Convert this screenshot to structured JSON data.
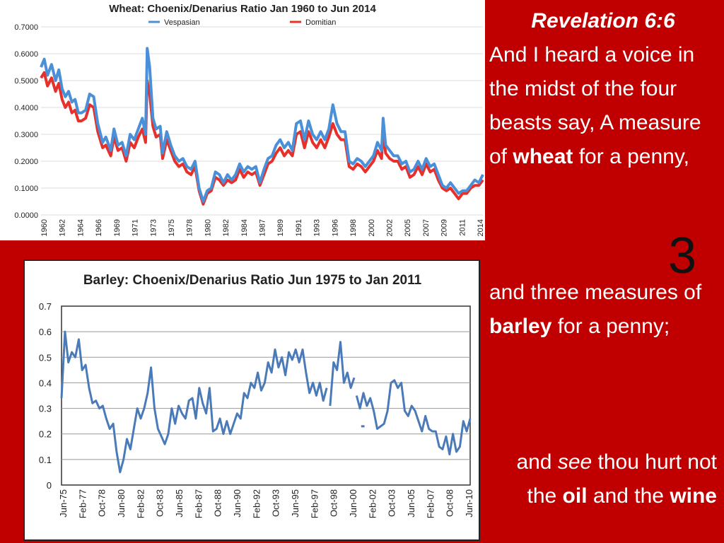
{
  "slide": {
    "title": "Revelation 6:6",
    "verse1": {
      "pre": "And I heard a voice in the midst of the four beasts say, A measure of ",
      "bold": "wheat",
      "post": " for a penny,"
    },
    "number": "3",
    "verse2": {
      "pre": " and three measures of ",
      "bold": "barley",
      "post": " for a penny;"
    },
    "verse3": {
      "pre1": "and ",
      "italic": "see",
      "pre2": " thou hurt not the ",
      "bold1": "oil",
      "mid": " and the ",
      "bold2": "wine"
    }
  },
  "chart_data": [
    {
      "type": "line",
      "title": "Wheat: Choenix/Denarius Ratio Jan 1960 to Jun 2014",
      "xlabel": "",
      "ylabel": "",
      "xlim": [
        1960,
        2014.5
      ],
      "ylim": [
        0,
        0.7
      ],
      "yticks": [
        "0.0000",
        "0.1000",
        "0.2000",
        "0.3000",
        "0.4000",
        "0.5000",
        "0.6000",
        "0.7000"
      ],
      "xticks": [
        "1960",
        "1962",
        "1964",
        "1966",
        "1969",
        "1971",
        "1973",
        "1975",
        "1978",
        "1980",
        "1982",
        "1984",
        "1987",
        "1989",
        "1991",
        "1993",
        "1996",
        "1998",
        "2000",
        "2002",
        "2005",
        "2007",
        "2009",
        "2011",
        "2014"
      ],
      "grid": true,
      "legend": "top-center",
      "series": [
        {
          "name": "Vespasian",
          "color": "#4a90d9",
          "x": [
            1960,
            1960.4,
            1960.8,
            1961.3,
            1961.8,
            1962.2,
            1962.6,
            1963,
            1963.4,
            1963.8,
            1964.2,
            1964.6,
            1965,
            1965.5,
            1966,
            1966.5,
            1967,
            1967.6,
            1968,
            1968.6,
            1969,
            1969.5,
            1970,
            1970.5,
            1971,
            1971.5,
            1972,
            1972.5,
            1972.9,
            1973.1,
            1973.4,
            1973.8,
            1974.2,
            1974.7,
            1975,
            1975.5,
            1976,
            1976.5,
            1977,
            1977.5,
            1978,
            1978.5,
            1979,
            1979.5,
            1980,
            1980.5,
            1981,
            1981.5,
            1982,
            1982.5,
            1983,
            1983.5,
            1984,
            1984.5,
            1985,
            1985.5,
            1986,
            1986.5,
            1987,
            1987.5,
            1988,
            1988.5,
            1989,
            1989.5,
            1990,
            1990.5,
            1991,
            1991.5,
            1992,
            1992.5,
            1993,
            1993.5,
            1994,
            1994.5,
            1995,
            1995.5,
            1996,
            1996.5,
            1997,
            1997.5,
            1998,
            1998.5,
            1999,
            1999.5,
            2000,
            2000.5,
            2001,
            2001.5,
            2002,
            2002.2,
            2002.5,
            2003,
            2003.5,
            2004,
            2004.5,
            2005,
            2005.5,
            2006,
            2006.5,
            2007,
            2007.5,
            2008,
            2008.5,
            2009,
            2009.5,
            2010,
            2010.5,
            2011,
            2011.5,
            2012,
            2012.5,
            2013,
            2013.5,
            2014,
            2014.5
          ],
          "y": [
            0.55,
            0.58,
            0.52,
            0.56,
            0.5,
            0.54,
            0.47,
            0.44,
            0.46,
            0.42,
            0.43,
            0.38,
            0.38,
            0.39,
            0.45,
            0.44,
            0.34,
            0.27,
            0.29,
            0.24,
            0.32,
            0.26,
            0.27,
            0.22,
            0.3,
            0.28,
            0.32,
            0.36,
            0.3,
            0.62,
            0.55,
            0.36,
            0.32,
            0.33,
            0.23,
            0.31,
            0.26,
            0.22,
            0.2,
            0.21,
            0.18,
            0.17,
            0.2,
            0.1,
            0.05,
            0.09,
            0.1,
            0.16,
            0.15,
            0.12,
            0.15,
            0.13,
            0.15,
            0.19,
            0.16,
            0.18,
            0.17,
            0.18,
            0.12,
            0.17,
            0.21,
            0.22,
            0.26,
            0.28,
            0.25,
            0.27,
            0.24,
            0.34,
            0.35,
            0.28,
            0.35,
            0.3,
            0.28,
            0.31,
            0.28,
            0.32,
            0.41,
            0.34,
            0.31,
            0.31,
            0.2,
            0.19,
            0.21,
            0.2,
            0.18,
            0.2,
            0.22,
            0.27,
            0.24,
            0.36,
            0.26,
            0.24,
            0.22,
            0.22,
            0.19,
            0.2,
            0.16,
            0.17,
            0.2,
            0.17,
            0.21,
            0.18,
            0.19,
            0.15,
            0.11,
            0.1,
            0.12,
            0.1,
            0.08,
            0.09,
            0.09,
            0.11,
            0.13,
            0.12,
            0.15
          ]
        },
        {
          "name": "Domitian",
          "color": "#e8302a",
          "x": [
            1960,
            1960.4,
            1960.8,
            1961.3,
            1961.8,
            1962.2,
            1962.6,
            1963,
            1963.4,
            1963.8,
            1964.2,
            1964.6,
            1965,
            1965.5,
            1966,
            1966.5,
            1967,
            1967.6,
            1968,
            1968.6,
            1969,
            1969.5,
            1970,
            1970.5,
            1971,
            1971.5,
            1972,
            1972.5,
            1972.9,
            1973.1,
            1973.4,
            1973.8,
            1974.2,
            1974.7,
            1975,
            1975.5,
            1976,
            1976.5,
            1977,
            1977.5,
            1978,
            1978.5,
            1979,
            1979.5,
            1980,
            1980.5,
            1981,
            1981.5,
            1982,
            1982.5,
            1983,
            1983.5,
            1984,
            1984.5,
            1985,
            1985.5,
            1986,
            1986.5,
            1987,
            1987.5,
            1988,
            1988.5,
            1989,
            1989.5,
            1990,
            1990.5,
            1991,
            1991.5,
            1992,
            1992.5,
            1993,
            1993.5,
            1994,
            1994.5,
            1995,
            1995.5,
            1996,
            1996.5,
            1997,
            1997.5,
            1998,
            1998.5,
            1999,
            1999.5,
            2000,
            2000.5,
            2001,
            2001.5,
            2002,
            2002.2,
            2002.5,
            2003,
            2003.5,
            2004,
            2004.5,
            2005,
            2005.5,
            2006,
            2006.5,
            2007,
            2007.5,
            2008,
            2008.5,
            2009,
            2009.5,
            2010,
            2010.5,
            2011,
            2011.5,
            2012,
            2012.5,
            2013,
            2013.5,
            2014,
            2014.5
          ],
          "y": [
            0.51,
            0.53,
            0.48,
            0.51,
            0.46,
            0.49,
            0.43,
            0.4,
            0.42,
            0.38,
            0.39,
            0.35,
            0.35,
            0.36,
            0.41,
            0.4,
            0.31,
            0.25,
            0.26,
            0.22,
            0.29,
            0.24,
            0.25,
            0.2,
            0.27,
            0.25,
            0.29,
            0.32,
            0.27,
            0.5,
            0.45,
            0.33,
            0.29,
            0.3,
            0.21,
            0.28,
            0.24,
            0.2,
            0.18,
            0.19,
            0.16,
            0.15,
            0.18,
            0.09,
            0.04,
            0.08,
            0.09,
            0.14,
            0.13,
            0.11,
            0.13,
            0.12,
            0.13,
            0.17,
            0.14,
            0.16,
            0.15,
            0.16,
            0.11,
            0.15,
            0.19,
            0.2,
            0.23,
            0.25,
            0.22,
            0.24,
            0.22,
            0.3,
            0.31,
            0.25,
            0.31,
            0.27,
            0.25,
            0.28,
            0.25,
            0.29,
            0.34,
            0.3,
            0.28,
            0.28,
            0.18,
            0.17,
            0.19,
            0.18,
            0.16,
            0.18,
            0.2,
            0.24,
            0.21,
            0.31,
            0.23,
            0.21,
            0.2,
            0.2,
            0.17,
            0.18,
            0.14,
            0.15,
            0.18,
            0.15,
            0.19,
            0.16,
            0.17,
            0.13,
            0.1,
            0.09,
            0.1,
            0.08,
            0.06,
            0.08,
            0.08,
            0.1,
            0.11,
            0.11,
            0.13
          ]
        }
      ]
    },
    {
      "type": "line",
      "title": "Barley: Choenix/Denarius Ratio Jun 1975 to Jan 2011",
      "xlabel": "",
      "ylabel": "",
      "xlim": [
        1975.4,
        2011.0
      ],
      "ylim": [
        0,
        0.7
      ],
      "yticks": [
        "0",
        "0.1",
        "0.2",
        "0.3",
        "0.4",
        "0.5",
        "0.6",
        "0.7"
      ],
      "xticks": [
        "Jun-75",
        "Feb-77",
        "Oct-78",
        "Jun-80",
        "Feb-82",
        "Oct-83",
        "Jun-85",
        "Feb-87",
        "Oct-88",
        "Jun-90",
        "Feb-92",
        "Oct-93",
        "Jun-95",
        "Feb-97",
        "Oct-98",
        "Jun-00",
        "Feb-02",
        "Oct-03",
        "Jun-05",
        "Feb-07",
        "Oct-08",
        "Jun-10"
      ],
      "grid": true,
      "legend": "none",
      "series": [
        {
          "name": "",
          "color": "#4a7ab8",
          "segments": [
            {
              "x": [
                1975.4,
                1975.7,
                1976.0,
                1976.3,
                1976.6,
                1976.9,
                1977.2,
                1977.5,
                1977.8,
                1978.1,
                1978.4,
                1978.7,
                1979.0,
                1979.3,
                1979.6,
                1979.9,
                1980.2,
                1980.5,
                1980.8,
                1981.1,
                1981.4,
                1981.7,
                1982.0,
                1982.3,
                1982.6,
                1982.9,
                1983.2,
                1983.5,
                1983.8,
                1984.1,
                1984.4,
                1984.7,
                1985.0,
                1985.3,
                1985.6,
                1985.9,
                1986.2,
                1986.5,
                1986.8,
                1987.1,
                1987.4,
                1987.7,
                1988.0,
                1988.3,
                1988.6,
                1988.9,
                1989.2,
                1989.5,
                1989.8,
                1990.1,
                1990.4,
                1990.7,
                1991.0,
                1991.3,
                1991.6,
                1991.9,
                1992.2,
                1992.5,
                1992.8,
                1993.1,
                1993.4,
                1993.7,
                1994.0,
                1994.3,
                1994.6,
                1994.9,
                1995.2,
                1995.5,
                1995.8,
                1996.1,
                1996.4,
                1996.7,
                1997.0,
                1997.3,
                1997.6,
                1997.9,
                1998.2,
                1998.5
              ],
              "y": [
                0.34,
                0.6,
                0.48,
                0.52,
                0.5,
                0.57,
                0.45,
                0.47,
                0.38,
                0.32,
                0.33,
                0.3,
                0.31,
                0.26,
                0.22,
                0.24,
                0.13,
                0.05,
                0.1,
                0.18,
                0.14,
                0.22,
                0.3,
                0.26,
                0.3,
                0.36,
                0.46,
                0.3,
                0.22,
                0.19,
                0.16,
                0.2,
                0.3,
                0.24,
                0.31,
                0.28,
                0.26,
                0.33,
                0.34,
                0.26,
                0.38,
                0.32,
                0.28,
                0.38,
                0.21,
                0.22,
                0.26,
                0.2,
                0.25,
                0.2,
                0.24,
                0.28,
                0.26,
                0.36,
                0.34,
                0.4,
                0.38,
                0.44,
                0.37,
                0.4,
                0.48,
                0.44,
                0.53,
                0.46,
                0.5,
                0.43,
                0.52,
                0.49,
                0.53,
                0.48,
                0.53,
                0.44,
                0.36,
                0.4,
                0.35,
                0.4,
                0.33,
                0.38
              ]
            },
            {
              "x": [
                1998.8,
                1999.1,
                1999.4,
                1999.7,
                2000.0,
                2000.3,
                2000.6,
                2000.9
              ],
              "y": [
                0.31,
                0.48,
                0.45,
                0.56,
                0.4,
                0.44,
                0.38,
                0.42
              ]
            },
            {
              "x": [
                2001.1,
                2001.4,
                2001.7,
                2002.0,
                2002.3,
                2002.6,
                2002.9,
                2003.2,
                2003.5,
                2003.8,
                2004.1,
                2004.4,
                2004.7,
                2005.0,
                2005.3,
                2005.6,
                2005.9,
                2006.2,
                2006.5,
                2006.8,
                2007.1,
                2007.4,
                2007.7,
                2008.0,
                2008.3,
                2008.6,
                2008.9,
                2009.2,
                2009.5,
                2009.8,
                2010.1,
                2010.4,
                2010.7,
                2011.0
              ],
              "y": [
                0.35,
                0.3,
                0.36,
                0.31,
                0.34,
                0.29,
                0.22,
                0.23,
                0.24,
                0.29,
                0.4,
                0.41,
                0.38,
                0.4,
                0.29,
                0.27,
                0.31,
                0.29,
                0.25,
                0.21,
                0.27,
                0.22,
                0.21,
                0.21,
                0.15,
                0.14,
                0.19,
                0.12,
                0.2,
                0.13,
                0.15,
                0.25,
                0.21,
                0.26
              ]
            },
            {
              "x": [
                2001.5,
                2001.8
              ],
              "y": [
                0.23,
                0.23
              ]
            }
          ]
        }
      ]
    }
  ]
}
